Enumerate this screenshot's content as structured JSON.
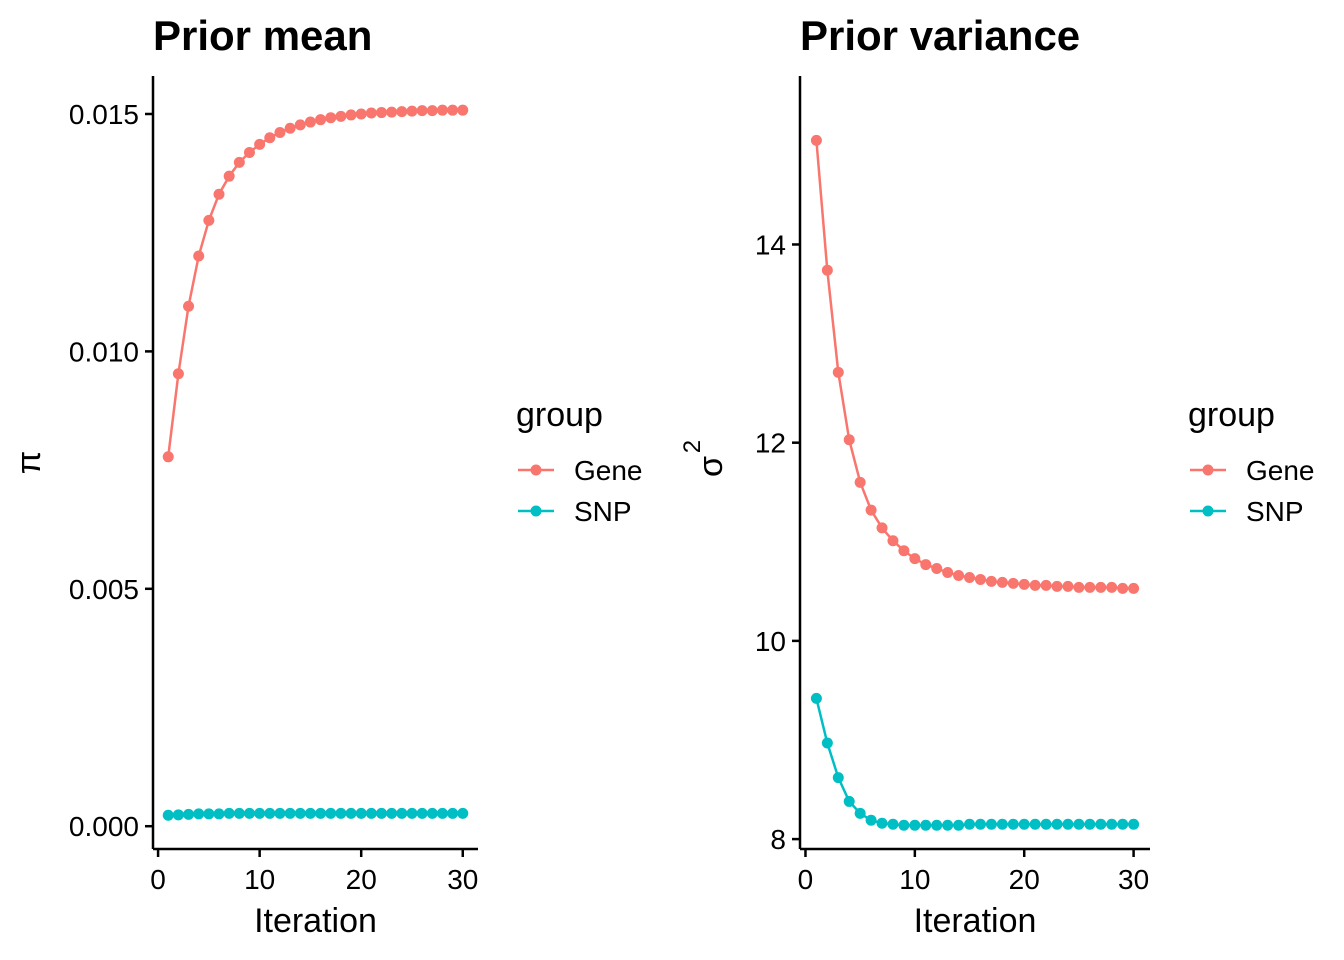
{
  "colors": {
    "Gene": "#F8766D",
    "SNP": "#00BFC4",
    "axis": "#000000",
    "background": "#FFFFFF"
  },
  "chart_data": [
    {
      "type": "line",
      "title": "Prior mean",
      "xlabel": "Iteration",
      "ylabel": "π",
      "xlim": [
        -0.5,
        31.5
      ],
      "ylim": [
        -0.00048,
        0.0158
      ],
      "xticks": [
        0,
        10,
        20,
        30
      ],
      "xtick_labels": [
        "0",
        "10",
        "20",
        "30"
      ],
      "yticks": [
        0,
        0.005,
        0.01,
        0.015
      ],
      "ytick_labels": [
        "0.000",
        "0.005",
        "0.010",
        "0.015"
      ],
      "legend": {
        "title": "group",
        "entries": [
          "Gene",
          "SNP"
        ],
        "position": "right"
      },
      "x": [
        1,
        2,
        3,
        4,
        5,
        6,
        7,
        8,
        9,
        10,
        11,
        12,
        13,
        14,
        15,
        16,
        17,
        18,
        19,
        20,
        21,
        22,
        23,
        24,
        25,
        26,
        27,
        28,
        29,
        30
      ],
      "series": [
        {
          "name": "Gene",
          "values": [
            0.00778,
            0.00953,
            0.01095,
            0.01201,
            0.01276,
            0.01331,
            0.01369,
            0.01398,
            0.01419,
            0.01436,
            0.0145,
            0.01461,
            0.0147,
            0.01477,
            0.01483,
            0.01488,
            0.01492,
            0.01495,
            0.01498,
            0.015,
            0.01502,
            0.01503,
            0.01504,
            0.01505,
            0.01506,
            0.01507,
            0.01507,
            0.01508,
            0.01508,
            0.01508
          ]
        },
        {
          "name": "SNP",
          "values": [
            0.00023,
            0.00024,
            0.00025,
            0.00026,
            0.00026,
            0.00026,
            0.00027,
            0.00027,
            0.00027,
            0.00027,
            0.00027,
            0.00027,
            0.00027,
            0.00027,
            0.00027,
            0.00027,
            0.00027,
            0.00027,
            0.00027,
            0.00027,
            0.00027,
            0.00027,
            0.00027,
            0.00027,
            0.00027,
            0.00027,
            0.00027,
            0.00027,
            0.00027,
            0.00027
          ]
        }
      ]
    },
    {
      "type": "line",
      "title": "Prior variance",
      "xlabel": "Iteration",
      "ylabel": "σ",
      "ylabel_superscript": "2",
      "xlim": [
        -0.5,
        31.5
      ],
      "ylim": [
        7.9,
        15.7
      ],
      "xticks": [
        0,
        10,
        20,
        30
      ],
      "xtick_labels": [
        "0",
        "10",
        "20",
        "30"
      ],
      "yticks": [
        8,
        10,
        12,
        14
      ],
      "ytick_labels": [
        "8",
        "10",
        "12",
        "14"
      ],
      "legend": {
        "title": "group",
        "entries": [
          "Gene",
          "SNP"
        ],
        "position": "right"
      },
      "x": [
        1,
        2,
        3,
        4,
        5,
        6,
        7,
        8,
        9,
        10,
        11,
        12,
        13,
        14,
        15,
        16,
        17,
        18,
        19,
        20,
        21,
        22,
        23,
        24,
        25,
        26,
        27,
        28,
        29,
        30
      ],
      "series": [
        {
          "name": "Gene",
          "values": [
            15.05,
            13.74,
            12.71,
            12.03,
            11.6,
            11.32,
            11.14,
            11.01,
            10.91,
            10.83,
            10.77,
            10.73,
            10.69,
            10.66,
            10.64,
            10.62,
            10.6,
            10.59,
            10.58,
            10.57,
            10.56,
            10.56,
            10.55,
            10.55,
            10.54,
            10.54,
            10.54,
            10.54,
            10.53,
            10.53
          ]
        },
        {
          "name": "SNP",
          "values": [
            9.42,
            8.97,
            8.62,
            8.38,
            8.26,
            8.19,
            8.16,
            8.15,
            8.14,
            8.14,
            8.14,
            8.14,
            8.14,
            8.14,
            8.15,
            8.15,
            8.15,
            8.15,
            8.15,
            8.15,
            8.15,
            8.15,
            8.15,
            8.15,
            8.15,
            8.15,
            8.15,
            8.15,
            8.15,
            8.15
          ]
        }
      ]
    }
  ]
}
